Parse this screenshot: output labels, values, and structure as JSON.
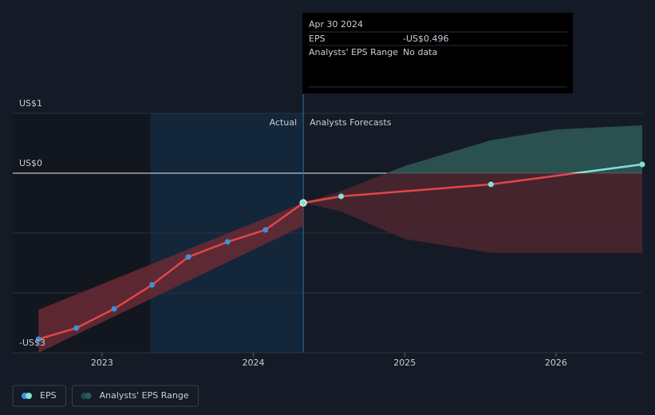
{
  "chart_data": {
    "type": "line",
    "xlim": [
      2022.41,
      2026.57
    ],
    "ylim": [
      -3,
      1
    ],
    "yticks": [
      {
        "value": 1,
        "label": "US$1"
      },
      {
        "value": 0,
        "label": "US$0"
      },
      {
        "value": -3,
        "label": "-US$3"
      }
    ],
    "grid_lines": [
      1,
      0,
      -1,
      -2,
      -3
    ],
    "xticks": [
      2023,
      2024,
      2025,
      2026
    ],
    "past_regions": [
      {
        "x": [
          2022.41,
          2023.32
        ],
        "color": "#12161e"
      },
      {
        "x": [
          2023.32,
          2024.33
        ],
        "color": "#13263a"
      }
    ],
    "present_x": 2024.33,
    "actual_label": "Actual",
    "forecast_label": "Analysts Forecasts",
    "series": [
      {
        "name": "EPS",
        "color": "#e2464a",
        "marker_color": "#3d8fdb",
        "x": [
          2022.58,
          2022.83,
          2023.08,
          2023.33,
          2023.57,
          2023.83,
          2024.08,
          2024.33
        ],
        "values": [
          -2.773,
          -2.587,
          -2.267,
          -1.867,
          -1.4,
          -1.147,
          -0.947,
          -0.496
        ]
      },
      {
        "color": "#e2464a",
        "above_zero_color": "#7ee3d4",
        "marker_color": "#7ee3d4",
        "x": [
          2024.33,
          2024.58,
          2025.57,
          2026.57
        ],
        "values": [
          -0.496,
          -0.387,
          -0.187,
          0.147
        ]
      }
    ],
    "ranges": [
      {
        "name": "Analysts' EPS Range",
        "color": "#2e5957",
        "below_zero_color": "#4e2630",
        "x": [
          2024.33,
          2024.58,
          2025,
          2025.57,
          2026,
          2026.57
        ],
        "high": [
          -0.496,
          -0.3,
          0.12,
          0.55,
          0.73,
          0.8
        ],
        "low": [
          -0.496,
          -0.64,
          -1.1,
          -1.33,
          -1.33,
          -1.33
        ]
      },
      {
        "color": "#6a2a34",
        "x": [
          2022.58,
          2024.33
        ],
        "high": [
          -2.28,
          -0.496
        ],
        "low": [
          -3,
          -0.88
        ]
      }
    ],
    "tooltip": {
      "date": "Apr 30 2024",
      "rows": [
        {
          "label": "EPS",
          "value": "-US$0.496",
          "color": "#e2464a"
        },
        {
          "label": "Analysts' EPS Range",
          "value": "No data",
          "color": "#7a8089"
        }
      ]
    }
  }
}
